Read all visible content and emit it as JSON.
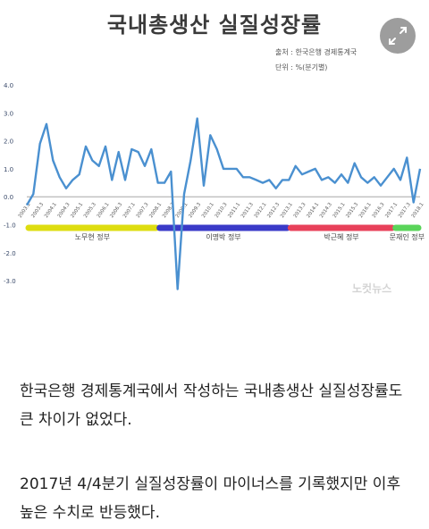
{
  "chart_data": {
    "type": "line",
    "title": "국내총생산 실질성장률",
    "source": "출처 : 한국은행 경제통계국",
    "unit": "단위 : %(분기별)",
    "xlabel": "",
    "ylabel": "",
    "ylim": [
      -3.5,
      4.0
    ],
    "yticks": [
      "4.0",
      "3.0",
      "2.0",
      "1.0",
      "0.0",
      "-1.0",
      "-2.0",
      "-3.0"
    ],
    "ytick_values": [
      4,
      3,
      2,
      1,
      0,
      -1,
      -2,
      -3
    ],
    "grid": false,
    "line_color": "#4a90d0",
    "x_tick_labels": [
      "2003.1",
      "2003.3",
      "2004.1",
      "2004.3",
      "2005.1",
      "2005.3",
      "2006.1",
      "2006.3",
      "2007.1",
      "2007.3",
      "2008.1",
      "2008.3",
      "2009.1",
      "2009.3",
      "2010.1",
      "2010.3",
      "2011.1",
      "2011.3",
      "2012.1",
      "2012.3",
      "2013.1",
      "2013.3",
      "2014.1",
      "2014.3",
      "2015.1",
      "2015.3",
      "2016.1",
      "2016.3",
      "2017.1",
      "2017.3",
      "2018.1"
    ],
    "series": [
      {
        "values": [
          -0.3,
          0.1,
          1.9,
          2.6,
          1.3,
          0.7,
          0.3,
          0.6,
          0.8,
          1.8,
          1.3,
          1.1,
          1.8,
          0.6,
          1.6,
          0.6,
          1.7,
          1.6,
          1.1,
          1.7,
          0.5,
          0.5,
          0.9,
          -3.3,
          0.1,
          1.3,
          2.8,
          0.4,
          2.2,
          1.7,
          1.0,
          1.0,
          1.0,
          0.7,
          0.7,
          0.6,
          0.5,
          0.6,
          0.3,
          0.6,
          0.6,
          1.1,
          0.8,
          0.9,
          1.0,
          0.6,
          0.7,
          0.5,
          0.8,
          0.5,
          1.2,
          0.7,
          0.5,
          0.7,
          0.4,
          0.7,
          1.0,
          0.6,
          1.4,
          -0.2,
          1.0
        ]
      }
    ],
    "annotations": [
      {
        "label": "노무현 정부",
        "color": "#dedd10",
        "start": 0,
        "end": 20
      },
      {
        "label": "이명박 정부",
        "color": "#3a3ac8",
        "start": 20,
        "end": 40
      },
      {
        "label": "박근혜 정부",
        "color": "#e8415a",
        "start": 40,
        "end": 56
      },
      {
        "label": "문재인 정부",
        "color": "#5ad45a",
        "start": 56,
        "end": 60
      }
    ]
  },
  "watermark": "노컷뉴스",
  "expand_icon": "expand-arrows-icon",
  "article": {
    "paragraph1": "한국은행 경제통계국에서 작성하는 국내총생산 실질성장률도 큰 차이가 없었다.",
    "paragraph2": "2017년 4/4분기 실질성장률이 마이너스를 기록했지만 이후 높은 수치로 반등했다."
  }
}
